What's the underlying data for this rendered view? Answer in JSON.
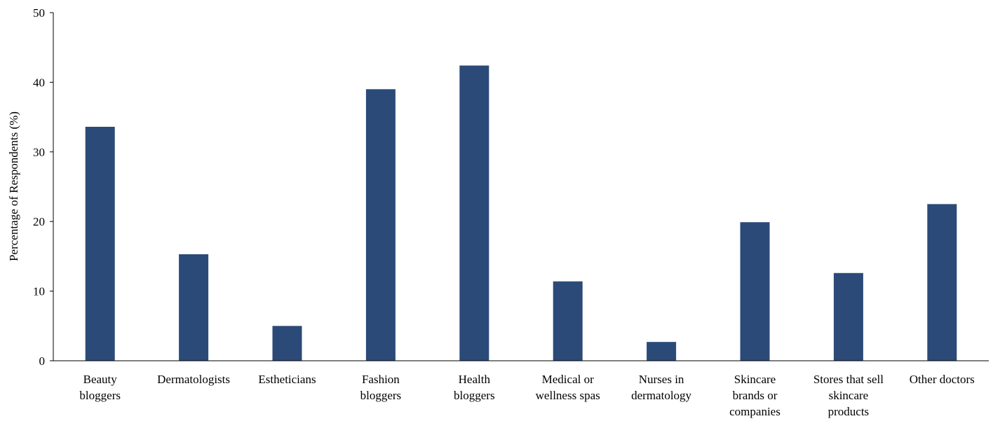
{
  "chart_data": {
    "type": "bar",
    "categories": [
      [
        "Beauty",
        "bloggers"
      ],
      [
        "Dermatologists"
      ],
      [
        "Estheticians"
      ],
      [
        "Fashion",
        "bloggers"
      ],
      [
        "Health",
        "bloggers"
      ],
      [
        "Medical or",
        "wellness spas"
      ],
      [
        "Nurses in",
        "dermatology"
      ],
      [
        "Skincare",
        "brands or",
        "companies"
      ],
      [
        "Stores that sell",
        "skincare",
        "products"
      ],
      [
        "Other doctors"
      ]
    ],
    "values": [
      33.6,
      15.3,
      5.0,
      39.0,
      42.4,
      11.4,
      2.7,
      19.9,
      12.6,
      22.5
    ],
    "ylabel": "Percentage of Respondents (%)",
    "ylim": [
      0,
      50
    ],
    "yticks": [
      0,
      10,
      20,
      30,
      40,
      50
    ],
    "bar_color": "#2b4a78",
    "grid": false
  }
}
